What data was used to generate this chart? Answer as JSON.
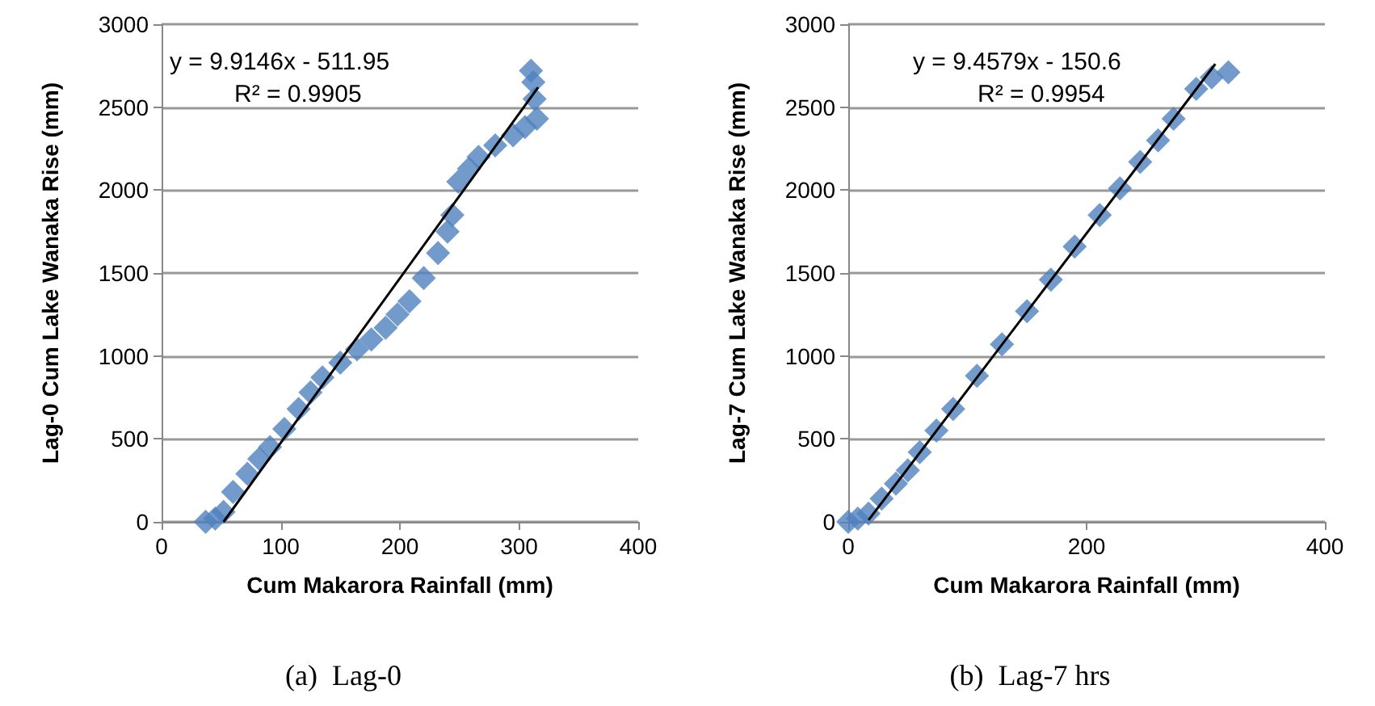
{
  "chart_data": [
    {
      "type": "scatter",
      "title": "(a)  Lag-0",
      "xlabel": "Cum Makarora Rainfall (mm)",
      "ylabel": "Lag-0 Cum Lake Wanaka Rise (mm)",
      "annotations": [
        "y = 9.9146x - 511.95",
        "R² = 0.9905"
      ],
      "xlim": [
        0,
        400
      ],
      "xticks": [
        0,
        100,
        200,
        300,
        400
      ],
      "ylim": [
        0,
        3000
      ],
      "yticks": [
        0,
        500,
        1000,
        1500,
        2000,
        2500,
        3000
      ],
      "grid": "y",
      "series": [
        {
          "color": "#4f81bd",
          "marker": "diamond",
          "x": [
            37,
            45,
            52,
            60,
            72,
            82,
            91,
            103,
            115,
            125,
            135,
            150,
            164,
            176,
            188,
            198,
            208,
            220,
            232,
            240,
            244,
            249,
            258,
            266,
            280,
            295,
            305,
            315,
            313,
            312,
            310
          ],
          "values": [
            0,
            20,
            60,
            180,
            290,
            380,
            450,
            560,
            680,
            780,
            870,
            960,
            1040,
            1100,
            1170,
            1250,
            1330,
            1470,
            1620,
            1750,
            1850,
            2050,
            2130,
            2200,
            2270,
            2330,
            2380,
            2430,
            2550,
            2650,
            2720
          ]
        },
        {
          "type": "line",
          "color": "#000000",
          "marker": "none",
          "x": [
            52,
            316
          ],
          "values": [
            0,
            2620
          ]
        }
      ]
    },
    {
      "type": "scatter",
      "title": "(b)  Lag-7 hrs",
      "xlabel": "Cum Makarora Rainfall (mm)",
      "ylabel": "Lag-7 Cum Lake Wanaka Rise (mm)",
      "annotations": [
        "y = 9.4579x - 150.6",
        "R² = 0.9954"
      ],
      "xlim": [
        0,
        400
      ],
      "xticks": [
        0,
        200,
        400
      ],
      "ylim": [
        0,
        3000
      ],
      "yticks": [
        0,
        500,
        1000,
        1500,
        2000,
        2500,
        3000
      ],
      "grid": "y",
      "series": [
        {
          "color": "#4f81bd",
          "marker": "diamond",
          "x": [
            0,
            8,
            17,
            28,
            40,
            50,
            60,
            74,
            88,
            108,
            129,
            150,
            170,
            190,
            211,
            228,
            245,
            260,
            273,
            292,
            305,
            319
          ],
          "values": [
            0,
            20,
            50,
            140,
            230,
            310,
            420,
            550,
            680,
            880,
            1070,
            1270,
            1460,
            1660,
            1850,
            2010,
            2170,
            2300,
            2430,
            2610,
            2680,
            2710
          ]
        },
        {
          "type": "line",
          "color": "#000000",
          "marker": "none",
          "x": [
            17,
            308
          ],
          "values": [
            10,
            2760
          ]
        }
      ]
    }
  ]
}
